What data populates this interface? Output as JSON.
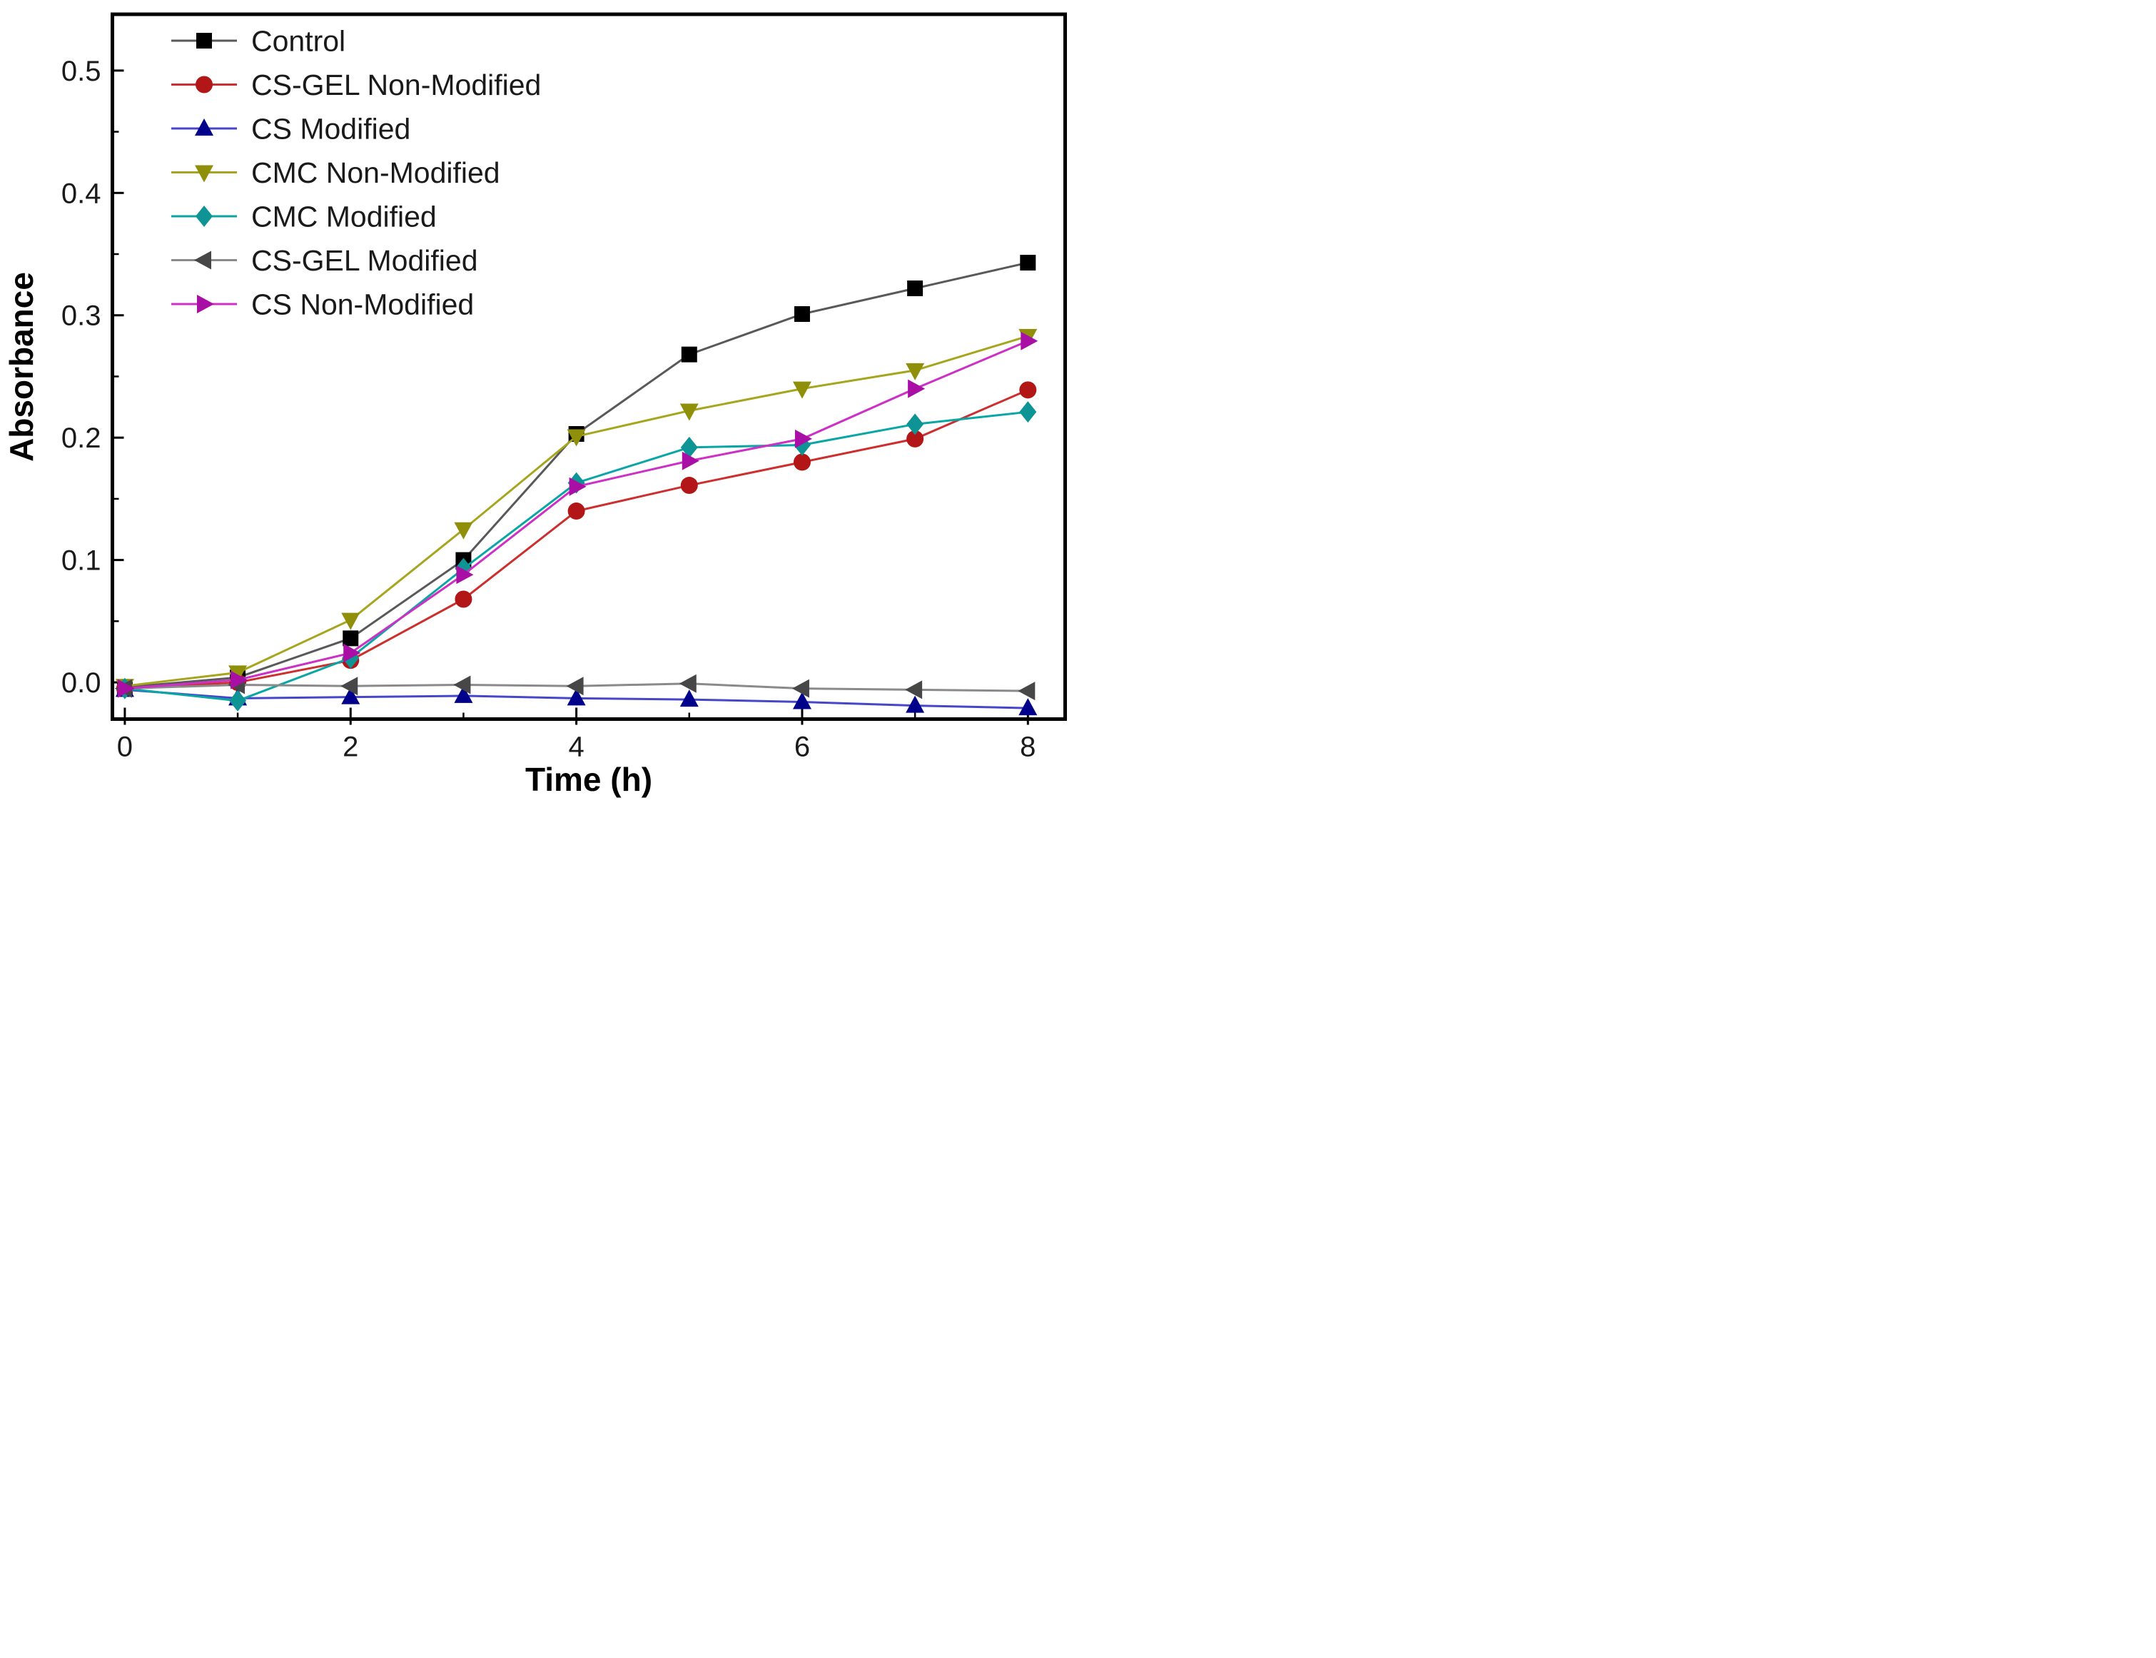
{
  "figure": {
    "background": "#ffffff",
    "frame_color": "#000000",
    "tick_label_color": "#1a1a1a"
  },
  "chart_data": {
    "type": "line",
    "title": "",
    "xlabel": "Time (h)",
    "ylabel": "Absorbance",
    "x": [
      0,
      1,
      2,
      3,
      4,
      5,
      6,
      7,
      8
    ],
    "xlim": [
      -0.11,
      8.33
    ],
    "ylim": [
      -0.03,
      0.546
    ],
    "x_major_ticks": [
      0,
      2,
      4,
      6,
      8
    ],
    "x_major_tick_labels": [
      "0",
      "2",
      "4",
      "6",
      "8"
    ],
    "x_minor_ticks": [
      1,
      3,
      5,
      7
    ],
    "y_major_ticks": [
      0.0,
      0.1,
      0.2,
      0.3,
      0.4,
      0.5
    ],
    "y_major_tick_labels": [
      "0.0",
      "0.1",
      "0.2",
      "0.3",
      "0.4",
      "0.5"
    ],
    "y_minor_ticks": [
      0.05,
      0.15,
      0.25,
      0.35,
      0.45
    ],
    "grid": false,
    "legend_position": "top-left-inside",
    "series": [
      {
        "key": "control",
        "name": "Control",
        "marker": "square",
        "marker_color": "#000000",
        "line_color": "#595959",
        "values": [
          -0.004,
          0.004,
          0.036,
          0.1,
          0.203,
          0.268,
          0.301,
          0.322,
          0.343
        ]
      },
      {
        "key": "cs-gel-non-modified",
        "name": "CS-GEL Non-Modified",
        "marker": "circle",
        "marker_color": "#b21616",
        "line_color": "#cd2e2e",
        "values": [
          -0.005,
          0.0,
          0.018,
          0.068,
          0.14,
          0.161,
          0.18,
          0.199,
          0.239
        ]
      },
      {
        "key": "cs-modified",
        "name": "CS Modified",
        "marker": "triangle-up",
        "marker_color": "#00008b",
        "line_color": "#4646c8",
        "values": [
          -0.006,
          -0.013,
          -0.012,
          -0.011,
          -0.013,
          -0.014,
          -0.016,
          -0.019,
          -0.021
        ]
      },
      {
        "key": "cmc-non-modified",
        "name": "CMC Non-Modified",
        "marker": "triangle-down",
        "marker_color": "#8f8f0a",
        "line_color": "#a6a61e",
        "values": [
          -0.003,
          0.008,
          0.051,
          0.125,
          0.201,
          0.222,
          0.24,
          0.255,
          0.283
        ]
      },
      {
        "key": "cmc-modified",
        "name": "CMC Modified",
        "marker": "diamond",
        "marker_color": "#0e9494",
        "line_color": "#0aa6a6",
        "values": [
          -0.005,
          -0.015,
          0.02,
          0.093,
          0.163,
          0.192,
          0.194,
          0.211,
          0.221
        ]
      },
      {
        "key": "cs-gel-modified",
        "name": "CS-GEL Modified",
        "marker": "triangle-left",
        "marker_color": "#474747",
        "line_color": "#8a8a8a",
        "values": [
          -0.005,
          -0.002,
          -0.003,
          -0.002,
          -0.003,
          -0.001,
          -0.005,
          -0.006,
          -0.007
        ]
      },
      {
        "key": "cs-non-modified",
        "name": "CS Non-Modified",
        "marker": "triangle-right",
        "marker_color": "#aa0fa5",
        "line_color": "#cc30c5",
        "values": [
          -0.005,
          0.002,
          0.024,
          0.088,
          0.16,
          0.181,
          0.199,
          0.24,
          0.279
        ]
      }
    ]
  }
}
